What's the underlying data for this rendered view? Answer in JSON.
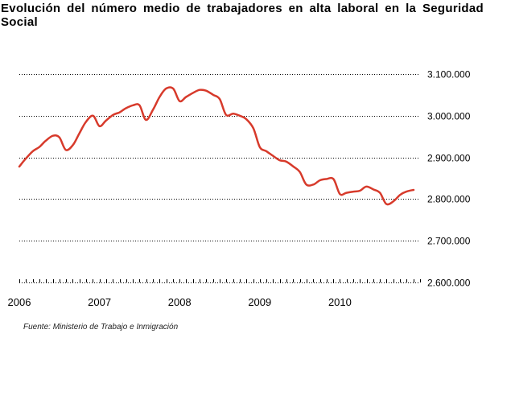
{
  "title": "Evolución del número medio de trabajadores en alta laboral en la Seguridad Social",
  "source": "Fuente: Ministerio de Trabajo e Inmigración",
  "colors": {
    "line": "#d73a2b",
    "grid": "#000000",
    "text": "#000000"
  },
  "chart_data": {
    "type": "line",
    "title": "Evolución del número medio de trabajadores en alta laboral en la Seguridad Social",
    "xlabel": "",
    "ylabel": "",
    "x_ticks": [
      "2006",
      "2007",
      "2008",
      "2009",
      "2010"
    ],
    "y_ticks": [
      "2.600.000",
      "2.700.000",
      "2.800.000",
      "2.900.000",
      "3.000.000",
      "3.100.000"
    ],
    "y_tick_values": [
      2600000,
      2700000,
      2800000,
      2900000,
      3000000,
      3100000
    ],
    "ylim": [
      2600000,
      3100000
    ],
    "xlim": [
      2006.0,
      2011.0
    ],
    "grid": "horizontal dotted",
    "series": [
      {
        "x": [
          2006.0,
          2006.08,
          2006.17,
          2006.25,
          2006.33,
          2006.42,
          2006.5,
          2006.58,
          2006.67,
          2006.75,
          2006.83,
          2006.92,
          2007.0,
          2007.08,
          2007.17,
          2007.25,
          2007.33,
          2007.42,
          2007.5,
          2007.58,
          2007.67,
          2007.75,
          2007.83,
          2007.92,
          2008.0,
          2008.08,
          2008.17,
          2008.25,
          2008.33,
          2008.42,
          2008.5,
          2008.58,
          2008.67,
          2008.75,
          2008.83,
          2008.92,
          2009.0,
          2009.08,
          2009.17,
          2009.25,
          2009.33,
          2009.42,
          2009.5,
          2009.58,
          2009.67,
          2009.75,
          2009.83,
          2009.92,
          2010.0,
          2010.08,
          2010.17,
          2010.25,
          2010.33,
          2010.42,
          2010.5,
          2010.58,
          2010.67,
          2010.75,
          2010.83,
          2010.92
        ],
        "y": [
          2878000,
          2897000,
          2915000,
          2925000,
          2940000,
          2952000,
          2948000,
          2918000,
          2930000,
          2958000,
          2985000,
          3000000,
          2975000,
          2988000,
          3002000,
          3008000,
          3018000,
          3025000,
          3025000,
          2990000,
          3015000,
          3045000,
          3065000,
          3065000,
          3035000,
          3045000,
          3055000,
          3062000,
          3060000,
          3050000,
          3040000,
          3002000,
          3005000,
          3000000,
          2992000,
          2970000,
          2925000,
          2915000,
          2903000,
          2893000,
          2890000,
          2878000,
          2865000,
          2835000,
          2835000,
          2845000,
          2848000,
          2848000,
          2812000,
          2815000,
          2818000,
          2820000,
          2830000,
          2823000,
          2815000,
          2788000,
          2795000,
          2810000,
          2818000,
          2822000
        ]
      }
    ]
  }
}
